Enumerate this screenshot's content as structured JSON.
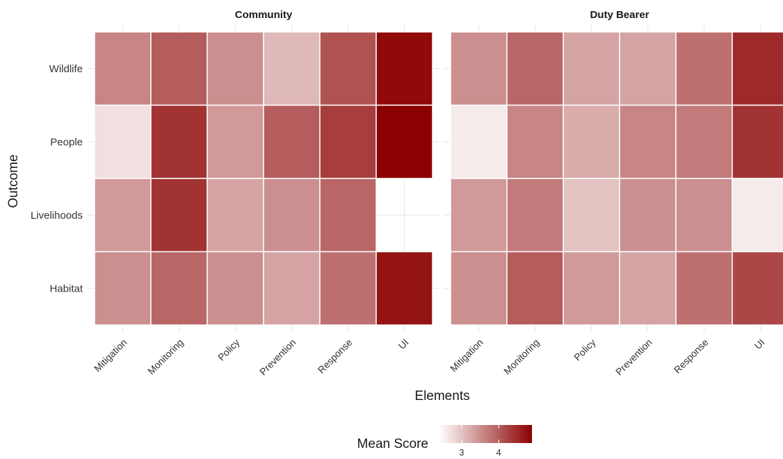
{
  "chart_data": {
    "type": "heatmap",
    "xlabel": "Elements",
    "ylabel": "Outcome",
    "legend": {
      "title": "Mean Score",
      "ticks": [
        3,
        4
      ],
      "range": [
        2.4,
        4.9
      ],
      "low_color": "#ffffff",
      "high_color": "#8b0000",
      "placement": "bottom"
    },
    "x_categories": [
      "Mitigation",
      "Monitoring",
      "Policy",
      "Prevention",
      "Response",
      "UI"
    ],
    "y_categories": [
      "Wildlife",
      "People",
      "Livelihoods",
      "Habitat"
    ],
    "panels": [
      {
        "title": "Community",
        "values": [
          [
            3.6,
            4.0,
            3.5,
            3.1,
            4.1,
            4.8
          ],
          [
            2.7,
            4.4,
            3.4,
            4.0,
            4.3,
            4.9
          ],
          [
            3.4,
            4.4,
            3.3,
            3.5,
            3.9,
            null
          ],
          [
            3.5,
            3.9,
            3.5,
            3.3,
            3.8,
            4.7
          ]
        ]
      },
      {
        "title": "Duty Bearer",
        "values": [
          [
            3.5,
            3.9,
            3.3,
            3.3,
            3.8,
            4.5
          ],
          [
            2.6,
            3.6,
            3.2,
            3.6,
            3.7,
            4.4
          ],
          [
            3.4,
            3.7,
            3.0,
            3.5,
            3.5,
            2.6
          ],
          [
            3.5,
            4.0,
            3.4,
            3.3,
            3.8,
            4.2
          ]
        ]
      }
    ]
  }
}
